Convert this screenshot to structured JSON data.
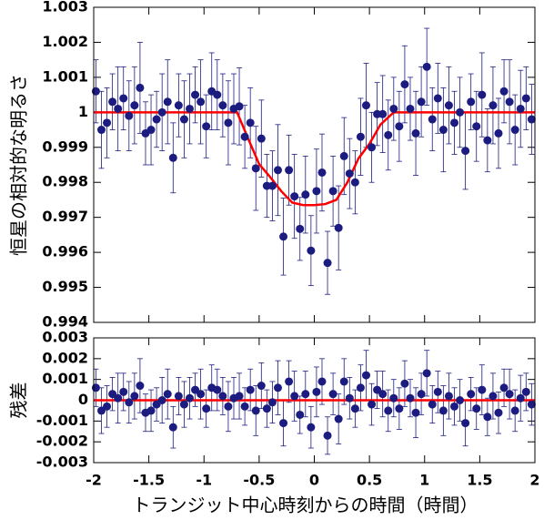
{
  "chart_data": [
    {
      "type": "errorbar-scatter",
      "ylabel": "恒星の相対的な明るさ",
      "xlim": [
        -2,
        2
      ],
      "xticks": [
        -2,
        -1.5,
        -1,
        -0.5,
        0,
        0.5,
        1,
        1.5,
        2
      ],
      "ylim": [
        0.994,
        1.003
      ],
      "yticks": [
        0.994,
        0.995,
        0.996,
        0.997,
        0.998,
        0.999,
        1,
        1.001,
        1.002,
        1.003
      ],
      "points": {
        "color": "#1c1c80",
        "x": [
          -1.98,
          -1.93,
          -1.88,
          -1.83,
          -1.78,
          -1.73,
          -1.68,
          -1.63,
          -1.58,
          -1.53,
          -1.48,
          -1.43,
          -1.38,
          -1.33,
          -1.28,
          -1.23,
          -1.18,
          -1.13,
          -1.08,
          -1.03,
          -0.98,
          -0.93,
          -0.88,
          -0.83,
          -0.78,
          -0.73,
          -0.68,
          -0.63,
          -0.58,
          -0.53,
          -0.48,
          -0.43,
          -0.38,
          -0.33,
          -0.28,
          -0.23,
          -0.18,
          -0.13,
          -0.08,
          -0.03,
          0.02,
          0.07,
          0.12,
          0.17,
          0.22,
          0.27,
          0.32,
          0.37,
          0.42,
          0.47,
          0.52,
          0.57,
          0.62,
          0.67,
          0.72,
          0.77,
          0.82,
          0.87,
          0.92,
          0.97,
          1.02,
          1.07,
          1.12,
          1.17,
          1.22,
          1.27,
          1.32,
          1.37,
          1.42,
          1.47,
          1.52,
          1.57,
          1.62,
          1.67,
          1.72,
          1.77,
          1.82,
          1.87,
          1.92,
          1.97
        ],
        "values": [
          1.0006,
          0.9995,
          0.9997,
          1.0003,
          1.0001,
          1.0004,
          0.9999,
          1.0002,
          1.0007,
          0.9994,
          0.9995,
          0.9998,
          1,
          1.0003,
          0.9987,
          1.0002,
          0.9998,
          1.0001,
          1.0005,
          1.0003,
          0.9996,
          1.0006,
          1.0005,
          1.0002,
          0.9997,
          1.0001,
          1.00017,
          0.9993,
          0.9997,
          0.9984,
          0.99925,
          0.9979,
          0.9979,
          0.99835,
          0.99645,
          0.99835,
          0.9976,
          0.99667,
          0.99765,
          0.99605,
          0.99775,
          0.99828,
          0.9957,
          0.99775,
          0.9967,
          0.99875,
          0.99825,
          0.998,
          0.9993,
          1.0002,
          0.999,
          0.99995,
          0.99995,
          0.99935,
          1.0001,
          0.9996,
          1.0008,
          1.0001,
          0.9994,
          1.0003,
          1.0013,
          0.9998,
          1.0004,
          0.9995,
          1.0002,
          0.9997,
          1,
          0.9989,
          1.0003,
          0.9996,
          1.0005,
          0.9992,
          1.0002,
          0.9994,
          1.0006,
          1.0003,
          0.9995,
          1.0001,
          1.0004,
          0.9998
        ],
        "errors": [
          0.0009,
          0.0011,
          0.001,
          0.0008,
          0.0012,
          0.0009,
          0.001,
          0.0011,
          0.0013,
          0.0009,
          0.001,
          0.0008,
          0.0011,
          0.0012,
          0.001,
          0.0009,
          0.0011,
          0.001,
          0.0008,
          0.0012,
          0.0009,
          0.0011,
          0.001,
          0.0009,
          0.0012,
          0.001,
          0.0011,
          0.0009,
          0.001,
          0.0012,
          0.0011,
          0.0009,
          0.001,
          0.0013,
          0.0011,
          0.001,
          0.0012,
          0.0009,
          0.0011,
          0.001,
          0.0012,
          0.0011,
          0.0009,
          0.001,
          0.0012,
          0.0011,
          0.001,
          0.0009,
          0.0011,
          0.0012,
          0.001,
          0.0009,
          0.0011,
          0.001,
          0.0009,
          0.001,
          0.0011,
          0.0009,
          0.0012,
          0.001,
          0.0011,
          0.0009,
          0.001,
          0.0012,
          0.0011,
          0.0009,
          0.001,
          0.0011,
          0.0008,
          0.001,
          0.0012,
          0.0009,
          0.0011,
          0.001,
          0.0009,
          0.0012,
          0.001,
          0.0011,
          0.0009,
          0.001
        ]
      },
      "model": {
        "color": "#ff0000",
        "x": [
          -2,
          -0.7,
          -0.6,
          -0.5,
          -0.4,
          -0.3,
          -0.2,
          -0.1,
          0,
          0.1,
          0.2,
          0.3,
          0.4,
          0.5,
          0.6,
          0.72,
          2
        ],
        "values": [
          1,
          1,
          0.99925,
          0.99852,
          0.99815,
          0.99775,
          0.99742,
          0.99735,
          0.99735,
          0.99738,
          0.9975,
          0.998,
          0.99868,
          0.9991,
          0.99965,
          1,
          1
        ]
      }
    },
    {
      "type": "errorbar-scatter",
      "ylabel": "残差",
      "xlabel": "トランジット中心時刻からの時間（時間）",
      "xlim": [
        -2,
        2
      ],
      "xticks": [
        -2,
        -1.5,
        -1,
        -0.5,
        0,
        0.5,
        1,
        1.5,
        2
      ],
      "ylim": [
        -0.003,
        0.003
      ],
      "yticks": [
        -0.003,
        -0.002,
        -0.001,
        0,
        0.001,
        0.002,
        0.003
      ],
      "points": {
        "color": "#1c1c80",
        "x": [
          -1.98,
          -1.93,
          -1.88,
          -1.83,
          -1.78,
          -1.73,
          -1.68,
          -1.63,
          -1.58,
          -1.53,
          -1.48,
          -1.43,
          -1.38,
          -1.33,
          -1.28,
          -1.23,
          -1.18,
          -1.13,
          -1.08,
          -1.03,
          -0.98,
          -0.93,
          -0.88,
          -0.83,
          -0.78,
          -0.73,
          -0.68,
          -0.63,
          -0.58,
          -0.53,
          -0.48,
          -0.43,
          -0.38,
          -0.33,
          -0.28,
          -0.23,
          -0.18,
          -0.13,
          -0.08,
          -0.03,
          0.02,
          0.07,
          0.12,
          0.17,
          0.22,
          0.27,
          0.32,
          0.37,
          0.42,
          0.47,
          0.52,
          0.57,
          0.62,
          0.67,
          0.72,
          0.77,
          0.82,
          0.87,
          0.92,
          0.97,
          1.02,
          1.07,
          1.12,
          1.17,
          1.22,
          1.27,
          1.32,
          1.37,
          1.42,
          1.47,
          1.52,
          1.57,
          1.62,
          1.67,
          1.72,
          1.77,
          1.82,
          1.87,
          1.92,
          1.97
        ],
        "values": [
          0.0006,
          -0.0005,
          -0.0003,
          0.0003,
          0.0001,
          0.0004,
          -0.0001,
          0.0002,
          0.0007,
          -0.0006,
          -0.0005,
          -0.0002,
          0,
          0.0003,
          -0.0013,
          0.0002,
          -0.0002,
          0.0001,
          0.0005,
          0.0003,
          -0.0004,
          0.0006,
          0.0005,
          0.0002,
          -0.0003,
          0.0001,
          0.0002,
          -0.0003,
          0.0005,
          -0.0005,
          0.0007,
          -0.0004,
          -0.0001,
          0.0006,
          -0.0011,
          0.0009,
          0.0002,
          -0.0007,
          0.0003,
          -0.0013,
          0.0004,
          0.0009,
          -0.0017,
          0.0003,
          -0.0009,
          0.0009,
          0.0001,
          -0.0004,
          0.0006,
          0.0012,
          -0.0002,
          0.0005,
          0.0003,
          -0.0005,
          0.0001,
          -0.0004,
          0.0008,
          0.0001,
          -0.0006,
          0.0003,
          0.0013,
          -0.0002,
          0.0004,
          -0.0005,
          0.0002,
          -0.0003,
          0,
          -0.0011,
          0.0003,
          -0.0004,
          0.0005,
          -0.0008,
          0.0002,
          -0.0006,
          0.0006,
          0.0003,
          -0.0005,
          0.0001,
          0.0004,
          -0.0002
        ],
        "errors": [
          0.0009,
          0.0011,
          0.001,
          0.0008,
          0.0012,
          0.0009,
          0.001,
          0.0011,
          0.0013,
          0.0009,
          0.001,
          0.0008,
          0.0011,
          0.0012,
          0.001,
          0.0009,
          0.0011,
          0.001,
          0.0008,
          0.0012,
          0.0009,
          0.0011,
          0.001,
          0.0009,
          0.0012,
          0.001,
          0.0011,
          0.0009,
          0.001,
          0.0012,
          0.0011,
          0.0009,
          0.001,
          0.0013,
          0.0011,
          0.001,
          0.0012,
          0.0009,
          0.0011,
          0.001,
          0.0012,
          0.0011,
          0.0009,
          0.001,
          0.0012,
          0.0011,
          0.001,
          0.0009,
          0.0011,
          0.0012,
          0.001,
          0.0009,
          0.0011,
          0.001,
          0.0009,
          0.001,
          0.0011,
          0.0009,
          0.0012,
          0.001,
          0.0011,
          0.0009,
          0.001,
          0.0012,
          0.0011,
          0.0009,
          0.001,
          0.0011,
          0.0008,
          0.001,
          0.0012,
          0.0009,
          0.0011,
          0.001,
          0.0009,
          0.0012,
          0.001,
          0.0011,
          0.0009,
          0.001
        ]
      },
      "model": {
        "color": "#ff0000",
        "x": [
          -2,
          2
        ],
        "values": [
          0,
          0
        ]
      }
    }
  ]
}
